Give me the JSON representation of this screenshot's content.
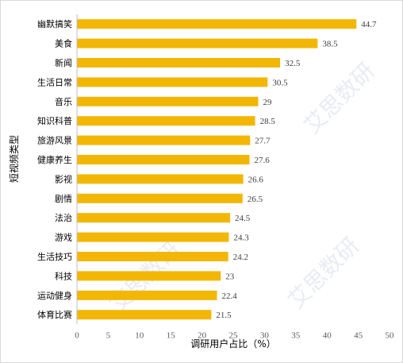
{
  "chart_data": {
    "type": "bar",
    "orientation": "horizontal",
    "categories": [
      "幽默搞笑",
      "美食",
      "新闻",
      "生活日常",
      "音乐",
      "知识科普",
      "旅游风景",
      "健康养生",
      "影视",
      "剧情",
      "法治",
      "游戏",
      "生活技巧",
      "科技",
      "运动健身",
      "体育比赛"
    ],
    "values": [
      44.7,
      38.5,
      32.5,
      30.5,
      29,
      28.5,
      27.7,
      27.6,
      26.6,
      26.5,
      24.5,
      24.3,
      24.2,
      23,
      22.4,
      21.5
    ],
    "xlabel": "调研用户占比（%）",
    "ylabel": "短视频类型",
    "xlim": [
      0,
      50
    ],
    "xticks": [
      0,
      5,
      10,
      15,
      20,
      25,
      30,
      35,
      40,
      45,
      50
    ],
    "grid": false,
    "bar_color": "#f2b705",
    "watermark": "艾思数研"
  }
}
